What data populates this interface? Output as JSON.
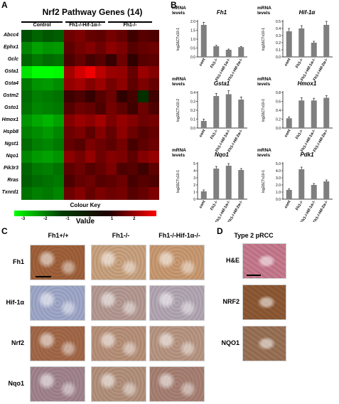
{
  "panels": {
    "a": "A",
    "b": "B",
    "c": "C",
    "d": "D"
  },
  "heatmap": {
    "title": "Nrf2 Pathway Genes (14)",
    "groups": [
      "Control",
      "Fh1-/-Hif-1α-/-",
      "Fh1-/-"
    ],
    "genes": [
      "Abcc4",
      "Ephx1",
      "Gclc",
      "Gsta1",
      "Gsta4",
      "Gstm2",
      "Gsto1",
      "Hmox1",
      "Hspb8",
      "Ngst1",
      "Nqo1",
      "Pik3r3",
      "Rras",
      "Txnrd1"
    ],
    "colour_key_label": "Colour Key",
    "value_label": "Value",
    "key_ticks": [
      "-3",
      "-2",
      "-1",
      "0",
      "1",
      "2"
    ],
    "key_range": [
      -3.4,
      3.0
    ],
    "matrix": [
      [
        -0.6,
        -0.9,
        -0.7,
        -0.8,
        0.9,
        1.1,
        0.8,
        0.7,
        1.0,
        0.8,
        0.3,
        0.6,
        0.5
      ],
      [
        -1.4,
        -1.8,
        -1.6,
        -1.7,
        0.7,
        1.0,
        1.2,
        0.9,
        1.3,
        1.1,
        0.6,
        0.8,
        0.9
      ],
      [
        -0.9,
        -1.2,
        -1.0,
        -1.1,
        0.5,
        0.8,
        0.4,
        0.6,
        0.2,
        0.9,
        0.1,
        0.6,
        0.7
      ],
      [
        -2.8,
        -3.2,
        -3.3,
        -3.1,
        1.6,
        2.2,
        2.6,
        1.9,
        1.5,
        1.4,
        0.8,
        1.5,
        1.2
      ],
      [
        -1.2,
        -1.6,
        -1.7,
        -1.5,
        1.4,
        1.6,
        1.2,
        1.5,
        1.0,
        1.3,
        0.7,
        1.1,
        0.8
      ],
      [
        -1.0,
        -1.3,
        -1.2,
        -1.1,
        0.3,
        0.5,
        0.2,
        0.6,
        0.9,
        0.1,
        0.4,
        -0.1,
        0.3
      ],
      [
        -1.1,
        -1.4,
        -1.3,
        -1.2,
        0.6,
        0.9,
        0.8,
        0.5,
        1.0,
        0.7,
        0.3,
        0.9,
        0.5
      ],
      [
        -1.6,
        -1.9,
        -2.1,
        -1.8,
        1.2,
        1.5,
        1.3,
        1.6,
        1.1,
        1.4,
        1.2,
        0.9,
        1.0
      ],
      [
        -1.3,
        -1.5,
        -1.7,
        -1.4,
        0.9,
        1.1,
        0.7,
        1.2,
        0.8,
        1.3,
        0.9,
        0.6,
        0.8
      ],
      [
        -1.0,
        -1.3,
        -1.4,
        -1.2,
        0.8,
        0.6,
        1.1,
        0.9,
        0.7,
        1.0,
        0.4,
        0.7,
        0.9
      ],
      [
        -1.4,
        -1.7,
        -1.8,
        -1.6,
        1.3,
        1.0,
        1.4,
        0.9,
        1.2,
        1.1,
        0.7,
        1.2,
        1.4
      ],
      [
        -0.9,
        -1.2,
        -1.3,
        -1.1,
        0.7,
        0.9,
        0.6,
        0.8,
        1.1,
        0.5,
        0.6,
        0.3,
        0.7
      ],
      [
        -0.8,
        -1.0,
        -1.1,
        -1.2,
        0.5,
        0.8,
        0.9,
        0.6,
        0.7,
        0.9,
        0.4,
        0.6,
        0.5
      ],
      [
        -1.1,
        -1.3,
        -1.2,
        -1.4,
        0.9,
        1.2,
        0.8,
        1.1,
        0.9,
        1.0,
        0.6,
        0.8,
        1.1
      ]
    ]
  },
  "bar_charts": {
    "mrna_label": [
      "mRNA",
      "levels"
    ],
    "categories": [
      "cont",
      "Fh1-/-",
      "Fh1-/-Hif-1α-/-",
      "Fh1-/-Hif-2α-/-"
    ],
    "charts": [
      {
        "gene": "Fh1",
        "ylabel": "log2ΔCTx10-1",
        "yticks": [
          "0.0",
          "0.5",
          "1.0",
          "1.5",
          "2.0"
        ],
        "ymax": 2.0,
        "values": [
          1.8,
          0.6,
          0.4,
          0.55
        ],
        "errors": [
          0.15,
          0.05,
          0.04,
          0.04
        ]
      },
      {
        "gene": "Hif-1α",
        "ylabel": "log2ΔCTx10-1",
        "yticks": [
          "0.0",
          "0.1",
          "0.2",
          "0.3",
          "0.4",
          "0.5"
        ],
        "ymax": 0.5,
        "values": [
          0.36,
          0.4,
          0.2,
          0.45
        ],
        "errors": [
          0.04,
          0.04,
          0.02,
          0.05
        ]
      },
      {
        "gene": "Gsta1",
        "ylabel": "log2ΔCTx10-2",
        "yticks": [
          "0.0",
          "0.1",
          "0.2",
          "0.3",
          "0.4"
        ],
        "ymax": 0.4,
        "values": [
          0.08,
          0.36,
          0.38,
          0.32
        ],
        "errors": [
          0.02,
          0.03,
          0.04,
          0.03
        ]
      },
      {
        "gene": "Hmox1",
        "ylabel": "log2ΔCTx10-1",
        "yticks": [
          "0.0",
          "0.2",
          "0.4",
          "0.6",
          "0.8"
        ],
        "ymax": 0.8,
        "values": [
          0.22,
          0.62,
          0.62,
          0.68
        ],
        "errors": [
          0.03,
          0.06,
          0.05,
          0.05
        ]
      },
      {
        "gene": "Nqo1",
        "ylabel": "log2ΔCTx10-1",
        "yticks": [
          "0",
          "1",
          "2",
          "3",
          "4",
          "5"
        ],
        "ymax": 5,
        "values": [
          1.1,
          4.3,
          4.7,
          4.1
        ],
        "errors": [
          0.2,
          0.3,
          0.3,
          0.2
        ]
      },
      {
        "gene": "Pdk1",
        "ylabel": "log2ΔCTx10-1",
        "yticks": [
          "0.0",
          "1.0",
          "2.0",
          "3.0",
          "4.0",
          "5.0"
        ],
        "ymax": 5.0,
        "values": [
          1.3,
          4.2,
          2.0,
          2.5
        ],
        "errors": [
          0.15,
          0.3,
          0.2,
          0.2
        ]
      }
    ]
  },
  "ihc": {
    "columns": [
      "Fh1+/+",
      "Fh1-/-",
      "Fh1-/-Hif-1α-/-"
    ],
    "rows": [
      "Fh1",
      "Hif-1α",
      "Nrf2",
      "Nqo1"
    ],
    "colors": [
      [
        "#a0613b",
        "#c9a27f",
        "#c99a72"
      ],
      [
        "#9fa8c9",
        "#b59a93",
        "#b3a7b4"
      ],
      [
        "#a4694a",
        "#b8917a",
        "#b89683"
      ],
      [
        "#a2848f",
        "#b3917d",
        "#a88174"
      ]
    ]
  },
  "pcc": {
    "title": "Type 2 pRCC",
    "rows": [
      "H&E",
      "NRF2",
      "NQO1"
    ],
    "colors": [
      "#c77a8e",
      "#8e5a35",
      "#9a7256"
    ]
  }
}
